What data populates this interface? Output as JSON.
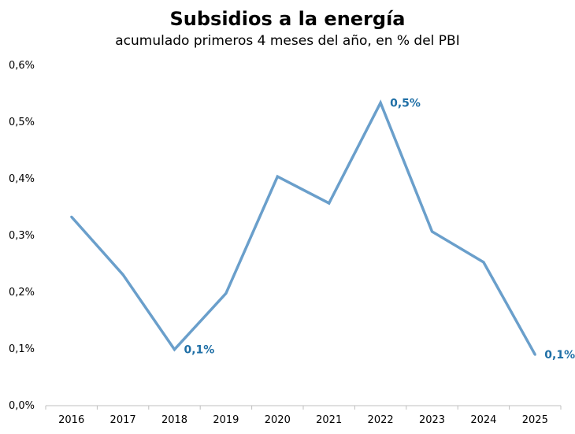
{
  "chart_data": {
    "type": "line",
    "title": "Subsidios a la energía",
    "subtitle": "acumulado primeros 4 meses del año, en % del PBI",
    "xlabel": "",
    "ylabel": "",
    "categories": [
      "2016",
      "2017",
      "2018",
      "2019",
      "2020",
      "2021",
      "2022",
      "2023",
      "2024",
      "2025"
    ],
    "series": [
      {
        "values": [
          0.333,
          0.231,
          0.099,
          0.198,
          0.404,
          0.357,
          0.534,
          0.307,
          0.253,
          0.09
        ]
      }
    ],
    "ylim": [
      0,
      0.6
    ],
    "yticks": [
      0,
      0.1,
      0.2,
      0.3,
      0.4,
      0.5,
      0.6
    ],
    "ytick_labels": [
      "0,0%",
      "0,1%",
      "0,2%",
      "0,3%",
      "0,4%",
      "0,5%",
      "0,6%"
    ],
    "data_labels": [
      {
        "index": 2,
        "text": "0,1%"
      },
      {
        "index": 6,
        "text": "0,5%"
      },
      {
        "index": 9,
        "text": "0,1%"
      }
    ],
    "grid": false,
    "legend": "none",
    "line_color": "#6A9FCB",
    "label_color": "#1F6FA6"
  }
}
